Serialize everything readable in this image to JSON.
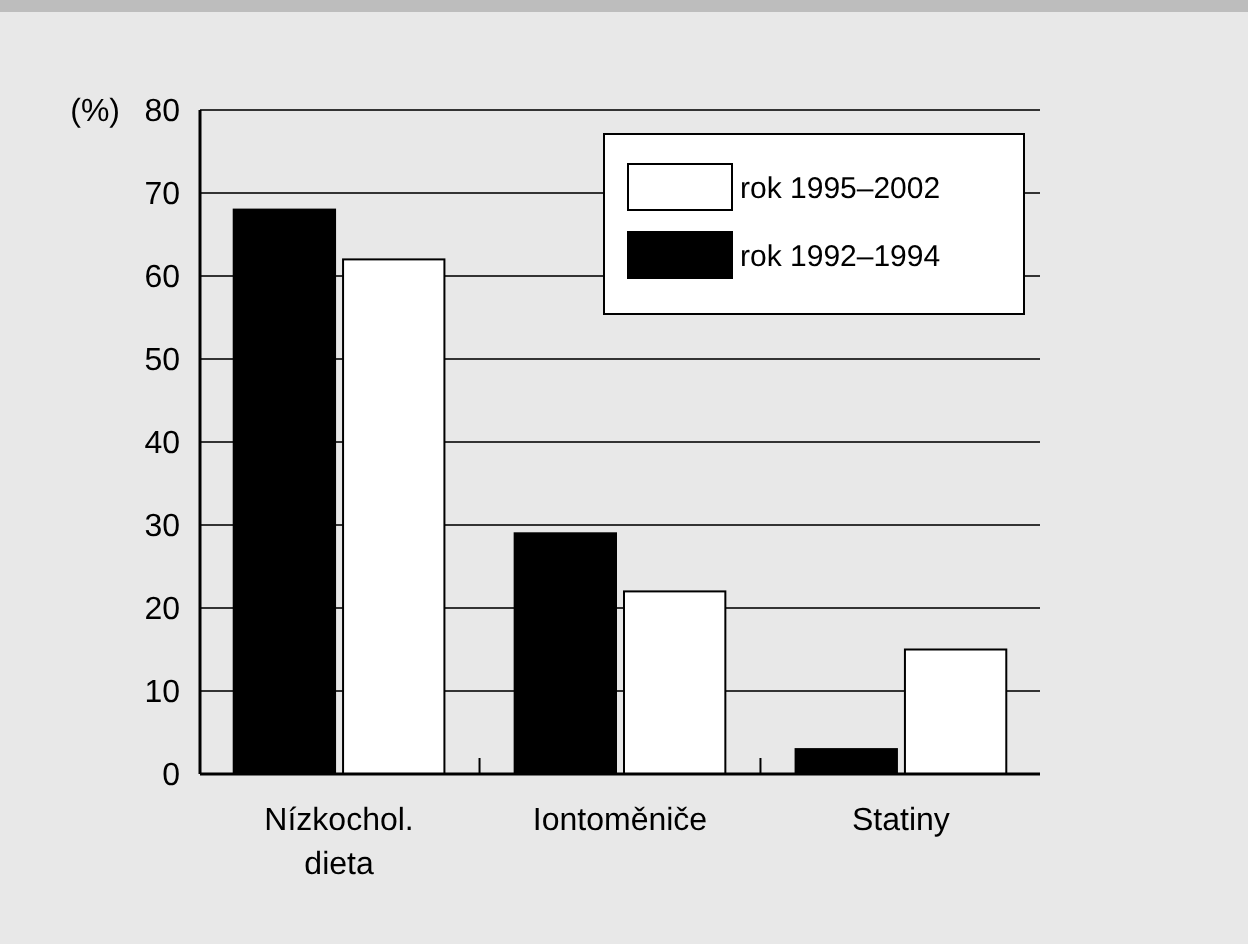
{
  "chart_data": {
    "type": "bar",
    "ylabel": "(%)",
    "categories": [
      "Nízkochol. dieta",
      "Iontoměniče",
      "Statiny"
    ],
    "series": [
      {
        "name": "rok 1992–1994",
        "color": "#000000",
        "values": [
          68,
          29,
          3
        ]
      },
      {
        "name": "rok 1995–2002",
        "color": "#ffffff",
        "values": [
          62,
          22,
          15
        ]
      }
    ],
    "ylim": [
      0,
      80
    ],
    "yticks": [
      0,
      10,
      20,
      30,
      40,
      50,
      60,
      70,
      80
    ],
    "grid": "y",
    "legend": "top right"
  }
}
